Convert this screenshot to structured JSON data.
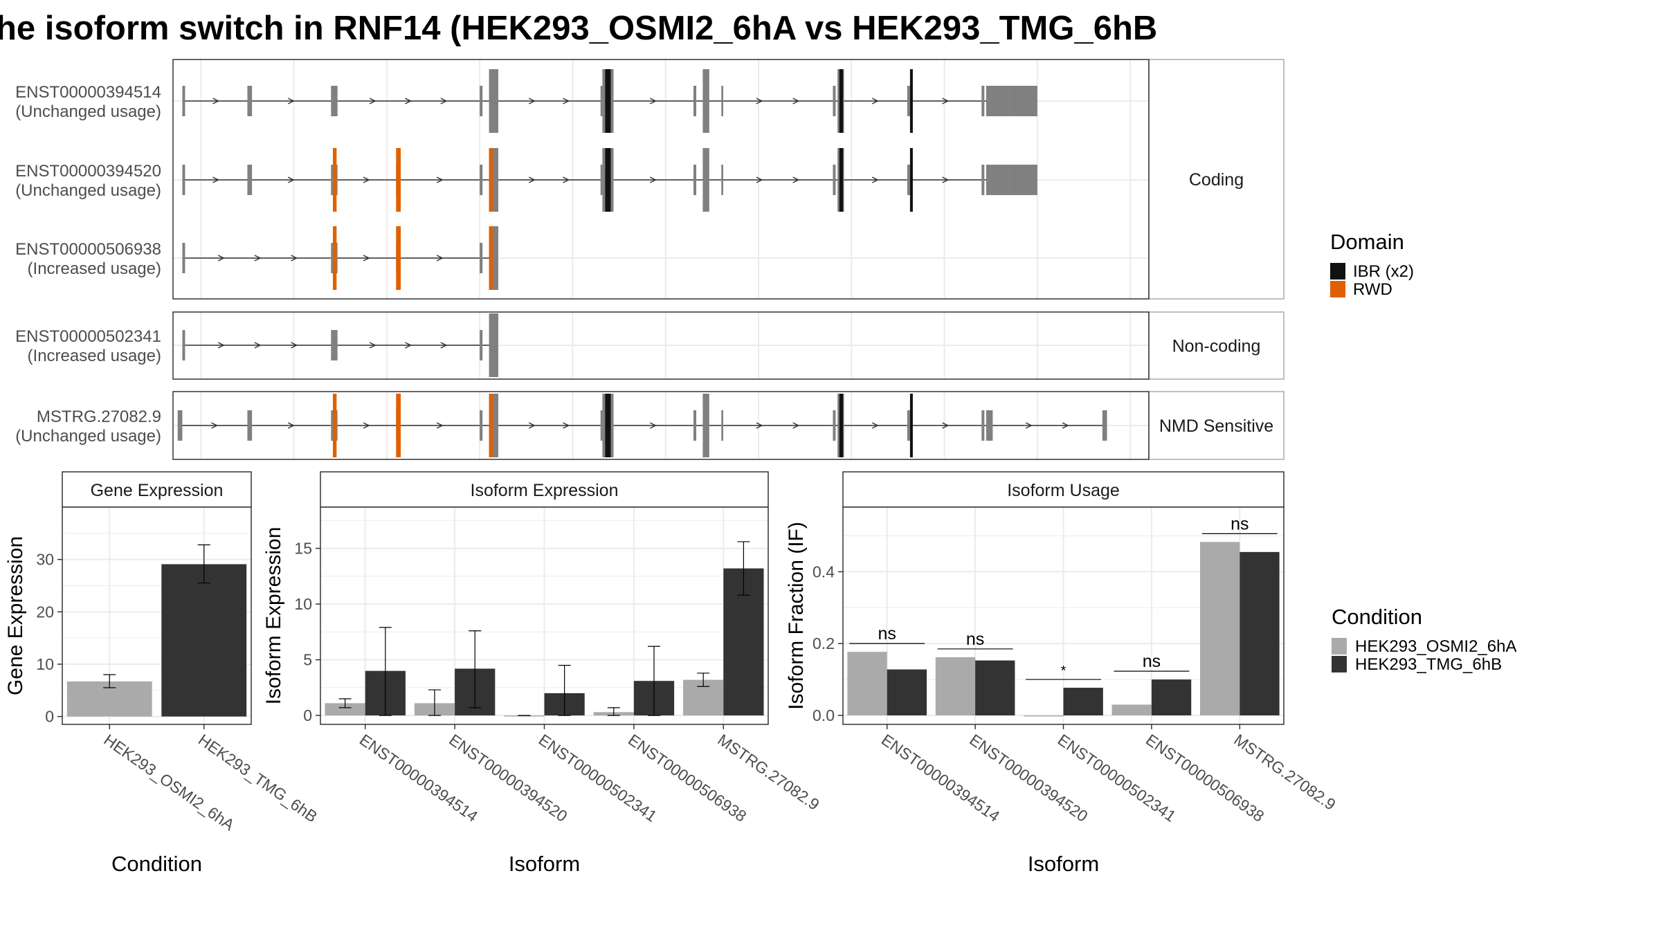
{
  "title": "he isoform switch in RNF14 (HEK293_OSMI2_6hA vs HEK293_TMG_6hB",
  "colors": {
    "exon": "#808080",
    "domain_IBR": "#111111",
    "domain_RWD": "#e06000",
    "cond1": "#aaaaaa",
    "cond2": "#333333",
    "grid": "#ebebeb",
    "strip": "#ffffff"
  },
  "transcripts": {
    "legend_title": "Domain",
    "legend": [
      {
        "name": "IBR (x2)",
        "key": "domain_IBR"
      },
      {
        "name": "RWD",
        "key": "domain_RWD"
      }
    ],
    "groups": [
      {
        "label": "Coding",
        "rows": [
          {
            "id": "ENST00000394514",
            "usage": "(Unchanged usage)",
            "exons": [
              [
                10,
                3,
                "s"
              ],
              [
                80,
                5,
                "s"
              ],
              [
                170,
                7,
                "s"
              ],
              [
                330,
                3,
                "s"
              ],
              [
                340,
                10,
                "t"
              ],
              [
                460,
                2,
                "s"
              ],
              [
                462,
                12,
                "t"
              ],
              [
                560,
                3,
                "s"
              ],
              [
                570,
                7,
                "t"
              ],
              [
                590,
                2,
                "s"
              ],
              [
                710,
                3,
                "s"
              ],
              [
                715,
                7,
                "t"
              ],
              [
                790,
                3,
                "s"
              ],
              [
                870,
                3,
                "s"
              ],
              [
                875,
                25,
                "s"
              ],
              [
                900,
                30,
                "s"
              ]
            ],
            "domains": [
              [
                465,
                6,
                "IBR"
              ],
              [
                717,
                4,
                "IBR"
              ],
              [
                793,
                3,
                "IBR"
              ]
            ]
          },
          {
            "id": "ENST00000394520",
            "usage": "(Unchanged usage)",
            "exons": [
              [
                10,
                3,
                "s"
              ],
              [
                80,
                5,
                "s"
              ],
              [
                170,
                7,
                "s"
              ],
              [
                240,
                5,
                "s"
              ],
              [
                330,
                3,
                "s"
              ],
              [
                340,
                10,
                "t"
              ],
              [
                460,
                2,
                "s"
              ],
              [
                462,
                12,
                "t"
              ],
              [
                560,
                3,
                "s"
              ],
              [
                570,
                7,
                "t"
              ],
              [
                590,
                2,
                "s"
              ],
              [
                710,
                3,
                "s"
              ],
              [
                715,
                7,
                "t"
              ],
              [
                790,
                3,
                "s"
              ],
              [
                870,
                3,
                "s"
              ],
              [
                875,
                25,
                "s"
              ],
              [
                900,
                30,
                "s"
              ]
            ],
            "domains": [
              [
                172,
                4,
                "RWD"
              ],
              [
                240,
                5,
                "RWD"
              ],
              [
                340,
                4,
                "RWD"
              ],
              [
                465,
                6,
                "IBR"
              ],
              [
                717,
                4,
                "IBR"
              ],
              [
                793,
                3,
                "IBR"
              ]
            ]
          },
          {
            "id": "ENST00000506938",
            "usage": "(Increased usage)",
            "exons": [
              [
                10,
                3,
                "s"
              ],
              [
                170,
                7,
                "s"
              ],
              [
                240,
                5,
                "s"
              ],
              [
                330,
                3,
                "s"
              ],
              [
                340,
                10,
                "t"
              ]
            ],
            "domains": [
              [
                172,
                4,
                "RWD"
              ],
              [
                240,
                5,
                "RWD"
              ],
              [
                340,
                4,
                "RWD"
              ]
            ]
          }
        ]
      },
      {
        "label": "Non-coding",
        "rows": [
          {
            "id": "ENST00000502341",
            "usage": "(Increased usage)",
            "exons": [
              [
                10,
                3,
                "s"
              ],
              [
                170,
                7,
                "s"
              ],
              [
                330,
                3,
                "s"
              ],
              [
                340,
                10,
                "t"
              ]
            ],
            "domains": []
          }
        ]
      },
      {
        "label": "NMD Sensitive",
        "rows": [
          {
            "id": "MSTRG.27082.9",
            "usage": "(Unchanged usage)",
            "exons": [
              [
                5,
                5,
                "s"
              ],
              [
                80,
                5,
                "s"
              ],
              [
                170,
                7,
                "s"
              ],
              [
                240,
                5,
                "s"
              ],
              [
                330,
                3,
                "s"
              ],
              [
                340,
                10,
                "t"
              ],
              [
                460,
                2,
                "s"
              ],
              [
                462,
                12,
                "t"
              ],
              [
                560,
                3,
                "s"
              ],
              [
                570,
                7,
                "t"
              ],
              [
                590,
                2,
                "s"
              ],
              [
                710,
                3,
                "s"
              ],
              [
                715,
                7,
                "t"
              ],
              [
                790,
                3,
                "s"
              ],
              [
                870,
                3,
                "s"
              ],
              [
                875,
                7,
                "s"
              ],
              [
                1000,
                5,
                "s"
              ]
            ],
            "domains": [
              [
                172,
                4,
                "RWD"
              ],
              [
                240,
                5,
                "RWD"
              ],
              [
                340,
                4,
                "RWD"
              ],
              [
                465,
                6,
                "IBR"
              ],
              [
                717,
                4,
                "IBR"
              ],
              [
                793,
                3,
                "IBR"
              ]
            ]
          }
        ]
      }
    ]
  },
  "chart_data": [
    {
      "type": "bar",
      "title": "Gene Expression",
      "xlabel": "Condition",
      "ylabel": "Gene Expression",
      "categories": [
        "HEK293_OSMI2_6hA",
        "HEK293_TMG_6hB"
      ],
      "values": [
        6.7,
        29.1
      ],
      "error_low": [
        5.5,
        25.5
      ],
      "error_high": [
        8.0,
        32.8
      ],
      "ylim": [
        -1.5,
        40
      ],
      "yticks": [
        0,
        10,
        20,
        30
      ]
    },
    {
      "type": "bar",
      "title": "Isoform Expression",
      "xlabel": "Isoform",
      "ylabel": "Isoform Expression",
      "categories": [
        "ENST00000394514",
        "ENST00000394520",
        "ENST00000502341",
        "ENST00000506938",
        "MSTRG.27082.9"
      ],
      "series": [
        {
          "name": "HEK293_OSMI2_6hA",
          "values": [
            1.1,
            1.1,
            0.0,
            0.3,
            3.2
          ],
          "error_low": [
            0.7,
            0.0,
            0.0,
            0.0,
            2.6
          ],
          "error_high": [
            1.5,
            2.3,
            0.0,
            0.7,
            3.8
          ]
        },
        {
          "name": "HEK293_TMG_6hB",
          "values": [
            4.0,
            4.2,
            2.0,
            3.1,
            13.2
          ],
          "error_low": [
            0.0,
            0.7,
            0.0,
            0.0,
            10.8
          ],
          "error_high": [
            7.9,
            7.6,
            4.5,
            6.2,
            15.6
          ]
        }
      ],
      "ylim": [
        -0.8,
        18.7
      ],
      "yticks": [
        0,
        5,
        10,
        15
      ]
    },
    {
      "type": "bar",
      "title": "Isoform Usage",
      "xlabel": "Isoform",
      "ylabel": "Isoform Fraction (IF)",
      "categories": [
        "ENST00000394514",
        "ENST00000394520",
        "ENST00000502341",
        "ENST00000506938",
        "MSTRG.27082.9"
      ],
      "series": [
        {
          "name": "HEK293_OSMI2_6hA",
          "values": [
            0.177,
            0.162,
            0.0,
            0.03,
            0.483
          ]
        },
        {
          "name": "HEK293_TMG_6hB",
          "values": [
            0.128,
            0.153,
            0.077,
            0.1,
            0.455
          ]
        }
      ],
      "significance": [
        "ns",
        "ns",
        "*",
        "ns",
        "ns"
      ],
      "ylim": [
        -0.025,
        0.58
      ],
      "yticks": [
        0.0,
        0.2,
        0.4
      ],
      "legend_title": "Condition",
      "legend_placement": "right"
    }
  ]
}
